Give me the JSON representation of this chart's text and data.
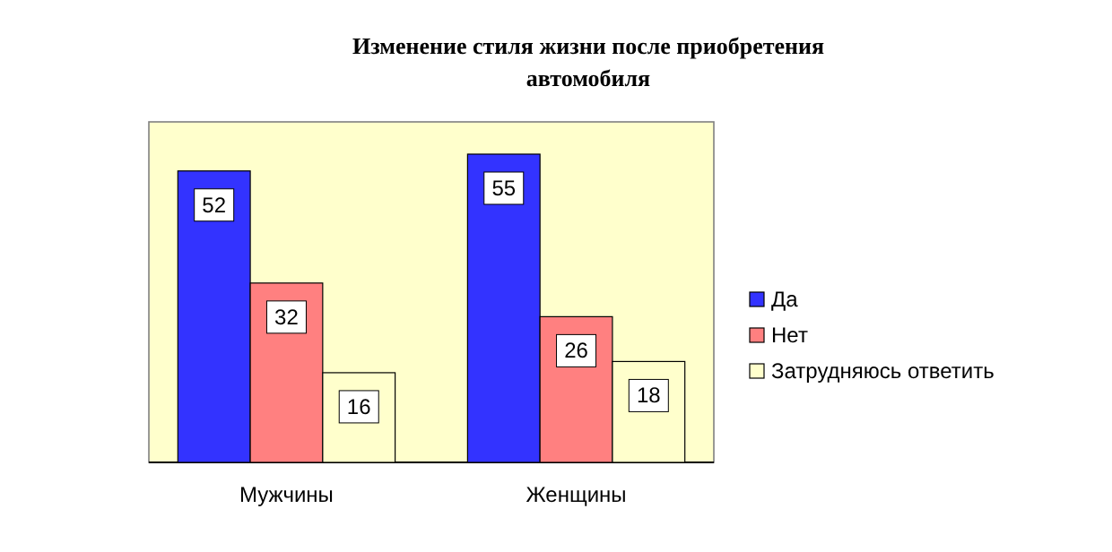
{
  "chart_data": {
    "type": "bar",
    "title": "Изменение стиля жизни после приобретения автомобиля",
    "categories": [
      "Мужчины",
      "Женщины"
    ],
    "series": [
      {
        "name": "Да",
        "color": "#3333ff",
        "values": [
          52,
          55
        ]
      },
      {
        "name": "Нет",
        "color": "#ff8080",
        "values": [
          32,
          26
        ]
      },
      {
        "name": "Затрудняюсь ответить",
        "color": "#ffffcc",
        "values": [
          16,
          18
        ]
      }
    ],
    "data_labels": true,
    "legend": "right",
    "grid": false
  }
}
